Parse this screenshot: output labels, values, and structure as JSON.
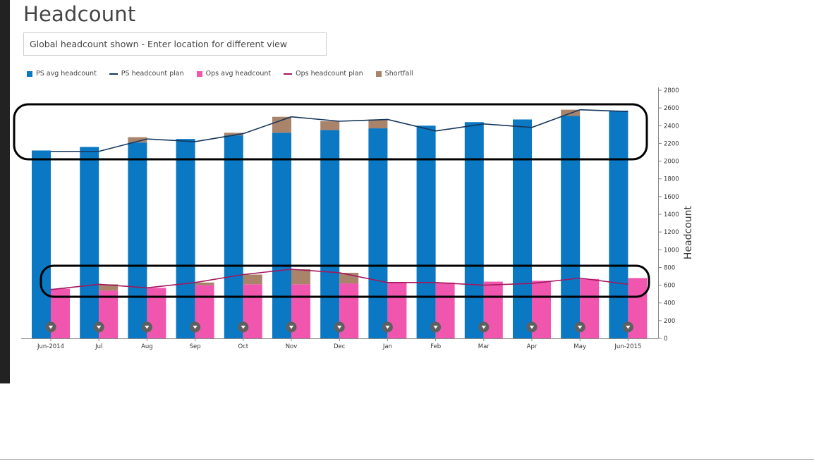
{
  "page": {
    "title": "Headcount"
  },
  "location_input": {
    "value": "Global headcount shown - Enter location for different view"
  },
  "legend": [
    {
      "label": "PS avg headcount",
      "kind": "box",
      "color": "#0a78c2"
    },
    {
      "label": "PS headcount plan",
      "kind": "line",
      "color": "#16365c"
    },
    {
      "label": "Ops avg headcount",
      "kind": "box",
      "color": "#f056ae"
    },
    {
      "label": "Ops headcount plan",
      "kind": "line",
      "color": "#a3185f"
    },
    {
      "label": "Shortfall",
      "kind": "box",
      "color": "#a9846b"
    }
  ],
  "chart_data": {
    "type": "bar",
    "categories": [
      "Jun-2014",
      "Jul",
      "Aug",
      "Sep",
      "Oct",
      "Nov",
      "Dec",
      "Jan",
      "Feb",
      "Mar",
      "Apr",
      "May",
      "Jun-2015"
    ],
    "series": [
      {
        "name": "PS avg headcount",
        "type": "bar",
        "values": [
          2120,
          2160,
          2210,
          2250,
          2290,
          2320,
          2350,
          2370,
          2400,
          2440,
          2470,
          2510,
          2570
        ]
      },
      {
        "name": "PS headcount plan",
        "type": "line",
        "values": [
          2110,
          2110,
          2250,
          2220,
          2310,
          2500,
          2450,
          2470,
          2340,
          2420,
          2380,
          2580,
          2560
        ]
      },
      {
        "name": "Ops avg headcount",
        "type": "bar",
        "values": [
          560,
          540,
          570,
          600,
          610,
          610,
          620,
          630,
          630,
          640,
          650,
          670,
          680
        ]
      },
      {
        "name": "Ops headcount plan",
        "type": "line",
        "values": [
          550,
          610,
          570,
          630,
          720,
          780,
          740,
          630,
          630,
          600,
          620,
          680,
          610
        ]
      },
      {
        "name": "Shortfall (PS)",
        "type": "bar",
        "values": [
          0,
          0,
          60,
          0,
          30,
          180,
          100,
          100,
          0,
          0,
          0,
          70,
          0
        ]
      },
      {
        "name": "Shortfall (Ops)",
        "type": "bar",
        "values": [
          0,
          70,
          0,
          30,
          110,
          170,
          120,
          0,
          0,
          0,
          0,
          0,
          0
        ]
      }
    ],
    "ylabel": "Headcount",
    "ylim": [
      0,
      2800
    ],
    "yticks": [
      0,
      200,
      400,
      600,
      800,
      1000,
      1200,
      1400,
      1600,
      1800,
      2000,
      2200,
      2400,
      2600,
      2800
    ],
    "ytick_labels": [
      "0",
      "200",
      "400",
      "600",
      "800",
      "1000",
      "1200",
      "1400",
      "1600",
      "1800",
      "2000",
      "2200",
      "2400",
      "2600",
      "2800"
    ],
    "y_axis_side": "right",
    "legend_position": "top-left",
    "grid": false,
    "colors": {
      "ps_bar": "#0a78c2",
      "ps_line": "#16365c",
      "ops_bar": "#f056ae",
      "ops_line": "#a3185f",
      "shortfall": "#a9846b"
    },
    "annotations": [
      "black oval around top of PS bars",
      "black oval around Ops bars and plan line"
    ]
  }
}
